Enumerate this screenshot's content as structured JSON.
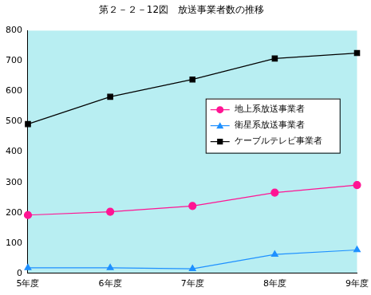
{
  "chart_data": {
    "type": "line",
    "title": "第２－２－12図　放送事業者数の推移",
    "categories": [
      "5年度",
      "6年度",
      "7年度",
      "8年度",
      "9年度"
    ],
    "series": [
      {
        "name": "地上系放送事業者",
        "color": "#ff1493",
        "marker": "circle",
        "values": [
          192,
          203,
          222,
          266,
          291
        ]
      },
      {
        "name": "衛星系放送事業者",
        "color": "#1e90ff",
        "marker": "triangle",
        "values": [
          18,
          18,
          15,
          62,
          77
        ]
      },
      {
        "name": "ケーブルテレビ事業者",
        "color": "#000000",
        "marker": "square",
        "values": [
          492,
          582,
          639,
          708,
          726
        ]
      }
    ],
    "ylim": [
      0,
      800
    ],
    "yticks": [
      0,
      100,
      200,
      300,
      400,
      500,
      600,
      700,
      800
    ],
    "grid": false,
    "legend": "right"
  }
}
